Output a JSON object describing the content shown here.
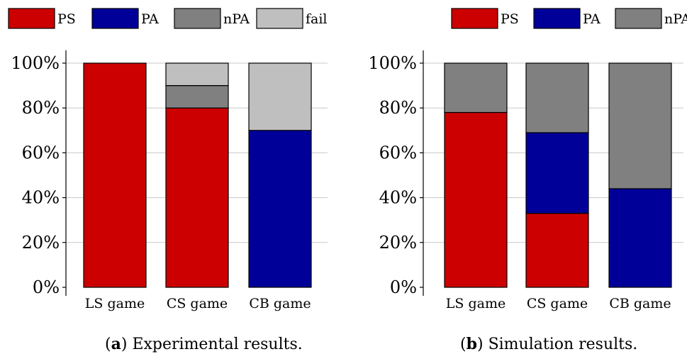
{
  "chart_data": [
    {
      "type": "bar",
      "stacked": true,
      "categories": [
        "LS game",
        "CS game",
        "CB game"
      ],
      "series": [
        {
          "name": "PS",
          "color": "#cc0000",
          "values": [
            100,
            80,
            0
          ]
        },
        {
          "name": "PA",
          "color": "#000099",
          "values": [
            0,
            0,
            70
          ]
        },
        {
          "name": "nPA",
          "color": "#808080",
          "values": [
            0,
            10,
            0
          ]
        },
        {
          "name": "fail",
          "color": "#bfbfbf",
          "values": [
            0,
            10,
            30
          ]
        }
      ],
      "ylim": [
        0,
        100
      ],
      "yticks": [
        0,
        20,
        40,
        60,
        80,
        100
      ],
      "ytick_labels": [
        "0%",
        "20%",
        "40%",
        "60%",
        "80%",
        "100%"
      ],
      "grid": true,
      "legend_position": "top",
      "title": "",
      "xlabel": "",
      "ylabel": "",
      "caption_label": "a",
      "caption_text": " Experimental results."
    },
    {
      "type": "bar",
      "stacked": true,
      "categories": [
        "LS game",
        "CS game",
        "CB game"
      ],
      "series": [
        {
          "name": "PS",
          "color": "#cc0000",
          "values": [
            78,
            33,
            0
          ]
        },
        {
          "name": "PA",
          "color": "#000099",
          "values": [
            0,
            36,
            44
          ]
        },
        {
          "name": "nPA",
          "color": "#808080",
          "values": [
            22,
            31,
            56
          ]
        }
      ],
      "ylim": [
        0,
        100
      ],
      "yticks": [
        0,
        20,
        40,
        60,
        80,
        100
      ],
      "ytick_labels": [
        "0%",
        "20%",
        "40%",
        "60%",
        "80%",
        "100%"
      ],
      "grid": true,
      "legend_position": "top",
      "title": "",
      "xlabel": "",
      "ylabel": "",
      "caption_label": "b",
      "caption_text": " Simulation results."
    }
  ]
}
